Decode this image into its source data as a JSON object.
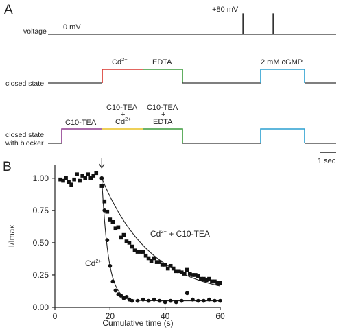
{
  "figure": {
    "panel_a": {
      "label": "A",
      "rows": [
        {
          "label": "voltage"
        },
        {
          "label": "closed state"
        },
        {
          "label": "closed state",
          "label2": "with blocker"
        }
      ],
      "voltage": {
        "baseline": "0 mV",
        "step": "+80 mV"
      },
      "closed_state": {
        "cd": "Cd",
        "cd_sup": "2+",
        "edta": "EDTA",
        "cgmp": "2 mM cGMP"
      },
      "blocker": {
        "c10": "C10-TEA",
        "mix1": [
          "C10-TEA",
          "+",
          "Cd"
        ],
        "mix1_sup": "2+",
        "mix2": [
          "C10-TEA",
          "+",
          "EDTA"
        ],
        "cgmp": ""
      },
      "scale_bar": "1 sec",
      "colors": {
        "cd": "#d9332b",
        "edta": "#3a9a3a",
        "cgmp": "#2a9fd0",
        "c10": "#8e3a8e",
        "mix1": "#e8c020"
      }
    },
    "panel_b": {
      "label": "B",
      "annotation_cd": "Cd",
      "annotation_cd_sup": "2+",
      "annotation_mix": "Cd",
      "annotation_mix_sup": "2+",
      "annotation_mix_rest": " + C10-TEA"
    }
  },
  "chart_data": {
    "type": "scatter",
    "title": "",
    "xlabel": "Cumulative time (s)",
    "ylabel": "I/Imax",
    "xlim": [
      0,
      60
    ],
    "ylim": [
      0,
      1.1
    ],
    "xticks": [
      0,
      20,
      40,
      60
    ],
    "yticks": [
      "0.00",
      "0.25",
      "0.50",
      "0.75",
      "1.00"
    ],
    "arrow_at_x": 17,
    "series": [
      {
        "name": "Cd2+",
        "marker": "circle",
        "x": [
          17,
          18,
          19,
          20,
          21,
          22,
          23,
          24,
          25,
          26,
          27,
          28,
          30,
          32,
          34,
          36,
          38,
          40,
          42,
          44,
          46,
          48,
          50,
          52,
          54,
          56,
          58,
          60
        ],
        "y": [
          1.0,
          0.75,
          0.52,
          0.32,
          0.2,
          0.13,
          0.1,
          0.09,
          0.07,
          0.08,
          0.06,
          0.05,
          0.05,
          0.06,
          0.05,
          0.06,
          0.05,
          0.04,
          0.05,
          0.04,
          0.05,
          0.11,
          0.06,
          0.05,
          0.05,
          0.06,
          0.05,
          0.05
        ]
      },
      {
        "name": "Cd2+ + C10-TEA",
        "marker": "square",
        "x": [
          2,
          3,
          4,
          5,
          6,
          7,
          8,
          9,
          10,
          11,
          12,
          13,
          14,
          15,
          17,
          18,
          19,
          20,
          21,
          22,
          23,
          24,
          25,
          26,
          27,
          28,
          29,
          30,
          31,
          32,
          33,
          34,
          35,
          36,
          37,
          38,
          39,
          40,
          41,
          42,
          43,
          44,
          45,
          46,
          47,
          48,
          49,
          50,
          51,
          52,
          53,
          54,
          55,
          56,
          57,
          58,
          59,
          60
        ],
        "y": [
          0.99,
          0.98,
          1.0,
          0.97,
          0.95,
          0.99,
          1.03,
          0.98,
          1.02,
          1.0,
          1.03,
          1.0,
          1.02,
          1.04,
          0.94,
          0.82,
          0.74,
          0.68,
          0.66,
          0.61,
          0.62,
          0.54,
          0.56,
          0.51,
          0.5,
          0.47,
          0.44,
          0.43,
          0.43,
          0.43,
          0.4,
          0.38,
          0.36,
          0.38,
          0.35,
          0.35,
          0.33,
          0.33,
          0.3,
          0.32,
          0.3,
          0.28,
          0.28,
          0.27,
          0.26,
          0.29,
          0.26,
          0.25,
          0.25,
          0.24,
          0.22,
          0.22,
          0.21,
          0.22,
          0.2,
          0.2,
          0.19,
          0.19
        ]
      }
    ]
  }
}
